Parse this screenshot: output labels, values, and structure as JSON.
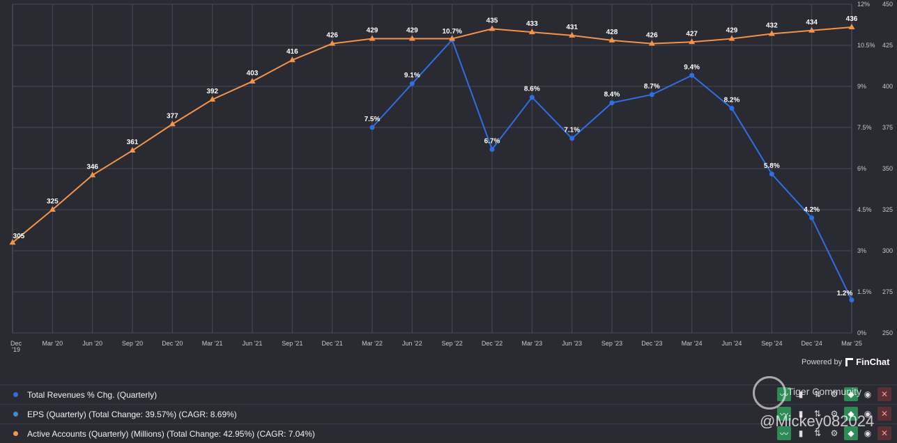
{
  "chart_data": {
    "type": "line",
    "categories": [
      "Dec '19",
      "Mar '20",
      "Jun '20",
      "Sep '20",
      "Dec '20",
      "Mar '21",
      "Jun '21",
      "Sep '21",
      "Dec '21",
      "Mar '22",
      "Jun '22",
      "Sep '22",
      "Dec '22",
      "Mar '23",
      "Jun '23",
      "Sep '23",
      "Dec '23",
      "Mar '24",
      "Jun '24",
      "Sep '24",
      "Dec '24",
      "Mar '25"
    ],
    "x_tick_labels": [
      "Dec\n'19",
      "Mar '20",
      "Jun '20",
      "Sep '20",
      "Dec '20",
      "Mar '21",
      "Jun '21",
      "Sep '21",
      "Dec '21",
      "Mar '22",
      "Jun '22",
      "Sep '22",
      "Dec '22",
      "Mar '23",
      "Jun '23",
      "Sep '23",
      "Dec '23",
      "Mar '24",
      "Jun '24",
      "Sep '24",
      "Dec '24",
      "Mar '25"
    ],
    "y_left_ticks": [
      "0%",
      "1.5%",
      "3%",
      "4.5%",
      "6%",
      "7.5%",
      "9%",
      "10.5%",
      "12%"
    ],
    "y_left_range": [
      0,
      12
    ],
    "y_right_ticks": [
      "250",
      "275",
      "300",
      "325",
      "350",
      "375",
      "400",
      "425",
      "450"
    ],
    "y_right_range": [
      250,
      450
    ],
    "grid": true,
    "series": [
      {
        "name": "Total Revenues % Chg. (Quarterly)",
        "axis": "left",
        "color": "#2f6fe4",
        "marker": "circle",
        "values": [
          null,
          null,
          null,
          null,
          null,
          null,
          null,
          null,
          null,
          7.5,
          9.1,
          10.7,
          6.7,
          8.6,
          7.1,
          8.4,
          8.7,
          9.4,
          8.2,
          5.8,
          4.2,
          1.2
        ],
        "labels": [
          "",
          "",
          "",
          "",
          "",
          "",
          "",
          "",
          "",
          "7.5%",
          "9.1%",
          "10.7%",
          "6.7%",
          "8.6%",
          "7.1%",
          "8.4%",
          "8.7%",
          "9.4%",
          "8.2%",
          "5.8%",
          "4.2%",
          "1.2%"
        ]
      },
      {
        "name": "Active Accounts (Quarterly) (Millions)",
        "axis": "right",
        "color": "#f4944a",
        "marker": "triangle",
        "values": [
          305,
          325,
          346,
          361,
          377,
          392,
          403,
          416,
          426,
          429,
          429,
          429,
          435,
          433,
          431,
          428,
          426,
          427,
          429,
          432,
          434,
          436
        ],
        "labels": [
          "305",
          "325",
          "346",
          "361",
          "377",
          "392",
          "403",
          "416",
          "426",
          "429",
          "429",
          "",
          "435",
          "433",
          "431",
          "428",
          "426",
          "427",
          "429",
          "432",
          "434",
          "436"
        ]
      }
    ]
  },
  "powered_by": {
    "prefix": "Powered by",
    "brand": "FinChat"
  },
  "legend": [
    {
      "label": "Total Revenues % Chg. (Quarterly)",
      "color": "#2f6fe4"
    },
    {
      "label": "EPS (Quarterly) (Total Change: 39.57%) (CAGR: 8.69%)",
      "color": "#3b8fd0"
    },
    {
      "label": "Active Accounts (Quarterly) (Millions) (Total Change: 42.95%) (CAGR: 7.04%)",
      "color": "#f4944a"
    }
  ],
  "controls": {
    "trend_icon": "trend-line-icon",
    "bars_icon": "bar-chart-icon",
    "sort_icon": "sort-arrows-icon",
    "settings_icon": "gear-icon",
    "tag_icon": "tag-icon",
    "visibility_icon": "eye-icon",
    "close_icon": "close-icon",
    "glyphs": {
      "trend": "〰",
      "bars": "▮",
      "sort": "⇅",
      "settings": "⚙",
      "tag": "◆",
      "eye": "◉",
      "close": "✕"
    }
  },
  "watermark": {
    "name": "Tiger Community",
    "user": "@Mickey082024"
  }
}
